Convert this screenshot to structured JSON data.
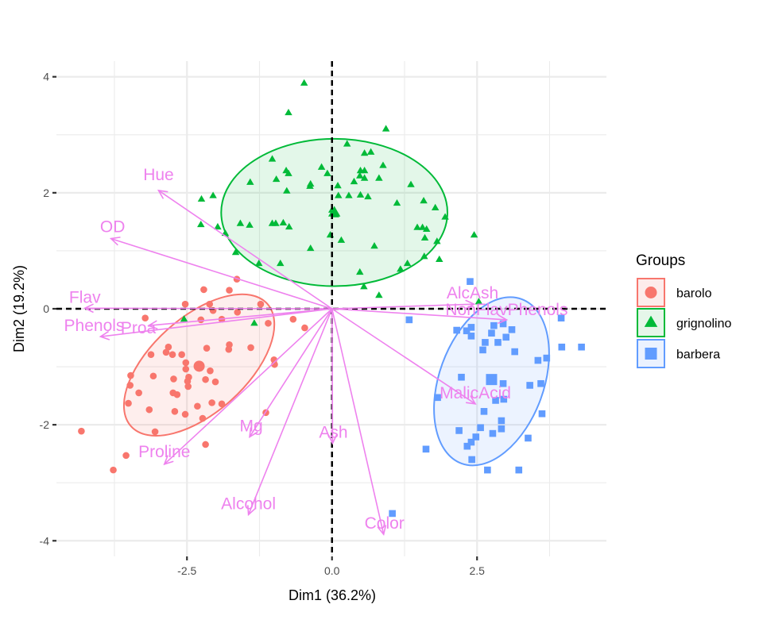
{
  "chart_data": {
    "type": "scatter",
    "subtype": "pca-biplot",
    "title": "",
    "xlabel": "Dim1 (36.2%)",
    "ylabel": "Dim2 (19.2%)",
    "xlim": [
      -4.75,
      4.73
    ],
    "ylim": [
      -4.27,
      4.27
    ],
    "x_ticks": [
      {
        "value": -2.5,
        "label": "-2.5"
      },
      {
        "value": 0,
        "label": "0.0"
      },
      {
        "value": 2.5,
        "label": "2.5"
      }
    ],
    "y_ticks": [
      {
        "value": -4,
        "label": "-4"
      },
      {
        "value": -2,
        "label": "-2"
      },
      {
        "value": 0,
        "label": "0"
      },
      {
        "value": 2,
        "label": "2"
      },
      {
        "value": 4,
        "label": "4"
      }
    ],
    "x_minor_grid": [
      -3.75,
      -1.25,
      1.25,
      3.75
    ],
    "y_minor_grid": [
      -3,
      -1,
      1,
      3
    ],
    "grid": true,
    "reference_lines": {
      "x": 0,
      "y": 0,
      "style": "dashed"
    },
    "legend": {
      "title": "Groups",
      "position": "right",
      "entries": [
        {
          "label": "barolo",
          "shape": "circle",
          "color": "#F8766D"
        },
        {
          "label": "grignolino",
          "shape": "triangle",
          "color": "#00BA38"
        },
        {
          "label": "barbera",
          "shape": "square",
          "color": "#619CFF"
        }
      ]
    },
    "series": [
      {
        "name": "barolo",
        "shape": "circle",
        "color": "#F8766D",
        "ellipse": {
          "cx": -2.29,
          "cy": -0.97,
          "rx": 1.58,
          "ry": 0.82,
          "angle": 42
        },
        "mean": [
          -2.29,
          -0.99
        ],
        "points": [
          [
            -1.64,
            0.51
          ],
          [
            -2.21,
            0.33
          ],
          [
            -1.77,
            0.32
          ],
          [
            -2.53,
            0.08
          ],
          [
            -2.11,
            0.08
          ],
          [
            -1.23,
            0.08
          ],
          [
            -1.63,
            -0.06
          ],
          [
            -3.22,
            -0.16
          ],
          [
            -2.26,
            -0.19
          ],
          [
            -1.9,
            -0.18
          ],
          [
            -1.1,
            -0.25
          ],
          [
            -0.67,
            -0.18
          ],
          [
            -0.47,
            -0.33
          ],
          [
            -2.82,
            -0.66
          ],
          [
            -2.86,
            -0.75
          ],
          [
            -2.75,
            -0.79
          ],
          [
            -2.59,
            -0.79
          ],
          [
            -3.12,
            -0.79
          ],
          [
            -2.16,
            -0.68
          ],
          [
            -1.77,
            -0.62
          ],
          [
            -1.78,
            -0.7
          ],
          [
            -1.4,
            -0.67
          ],
          [
            -2.52,
            -0.93
          ],
          [
            -2.52,
            -1.04
          ],
          [
            -2.1,
            -1.07
          ],
          [
            -1.0,
            -0.88
          ],
          [
            -0.99,
            -0.96
          ],
          [
            -3.47,
            -1.15
          ],
          [
            -3.08,
            -1.16
          ],
          [
            -2.73,
            -1.21
          ],
          [
            -2.47,
            -1.18
          ],
          [
            -2.18,
            -1.22
          ],
          [
            -2.01,
            -1.26
          ],
          [
            -2.49,
            -1.25
          ],
          [
            -2.48,
            -1.34
          ],
          [
            -3.48,
            -1.32
          ],
          [
            -3.33,
            -1.45
          ],
          [
            -2.74,
            -1.45
          ],
          [
            -2.67,
            -1.48
          ],
          [
            -3.51,
            -1.63
          ],
          [
            -2.32,
            -1.68
          ],
          [
            -2.07,
            -1.62
          ],
          [
            -1.9,
            -1.64
          ],
          [
            -3.15,
            -1.74
          ],
          [
            -2.71,
            -1.77
          ],
          [
            -2.53,
            -1.82
          ],
          [
            -2.23,
            -1.89
          ],
          [
            -1.14,
            -1.79
          ],
          [
            -3.05,
            -2.12
          ],
          [
            -4.32,
            -2.11
          ],
          [
            -2.18,
            -2.34
          ],
          [
            -3.55,
            -2.53
          ],
          [
            -3.77,
            -2.78
          ],
          [
            -2.05,
            -0.03
          ]
        ]
      },
      {
        "name": "grignolino",
        "shape": "triangle",
        "color": "#00BA38",
        "ellipse": {
          "cx": 0.04,
          "cy": 1.66,
          "rx": 1.95,
          "ry": 1.27,
          "angle": 0
        },
        "mean": [
          0.04,
          1.66
        ],
        "points": [
          [
            -0.48,
            3.89
          ],
          [
            -0.75,
            3.38
          ],
          [
            0.93,
            3.1
          ],
          [
            0.26,
            2.84
          ],
          [
            0.56,
            2.68
          ],
          [
            0.67,
            2.7
          ],
          [
            -1.03,
            2.58
          ],
          [
            -0.18,
            2.44
          ],
          [
            -0.79,
            2.38
          ],
          [
            -0.75,
            2.33
          ],
          [
            -0.08,
            2.33
          ],
          [
            0.88,
            2.47
          ],
          [
            0.49,
            2.38
          ],
          [
            0.56,
            2.38
          ],
          [
            0.48,
            2.29
          ],
          [
            0.56,
            2.25
          ],
          [
            0.81,
            2.25
          ],
          [
            0.38,
            2.19
          ],
          [
            -1.41,
            2.18
          ],
          [
            -0.96,
            2.23
          ],
          [
            -0.37,
            2.15
          ],
          [
            -0.38,
            2.11
          ],
          [
            0.1,
            2.12
          ],
          [
            1.36,
            2.14
          ],
          [
            -0.78,
            2.03
          ],
          [
            0.11,
            1.95
          ],
          [
            0.29,
            1.95
          ],
          [
            0.49,
            1.96
          ],
          [
            0.62,
            1.93
          ],
          [
            -2.25,
            1.89
          ],
          [
            -2.05,
            1.95
          ],
          [
            1.12,
            1.82
          ],
          [
            1.58,
            1.86
          ],
          [
            1.78,
            1.74
          ],
          [
            1.95,
            1.58
          ],
          [
            -2.26,
            1.45
          ],
          [
            -1.97,
            1.41
          ],
          [
            -1.58,
            1.47
          ],
          [
            -1.42,
            1.44
          ],
          [
            -1.03,
            1.47
          ],
          [
            -0.97,
            1.47
          ],
          [
            -0.84,
            1.48
          ],
          [
            -0.74,
            1.41
          ],
          [
            1.47,
            1.4
          ],
          [
            1.56,
            1.4
          ],
          [
            1.63,
            1.37
          ],
          [
            -1.84,
            1.3
          ],
          [
            -0.03,
            1.27
          ],
          [
            0.16,
            1.18
          ],
          [
            1.6,
            1.22
          ],
          [
            1.81,
            1.16
          ],
          [
            -0.37,
            1.04
          ],
          [
            0.73,
            1.08
          ],
          [
            -1.66,
            0.97
          ],
          [
            1.59,
            0.9
          ],
          [
            1.85,
            0.85
          ],
          [
            -1.26,
            0.78
          ],
          [
            -0.89,
            0.78
          ],
          [
            1.3,
            0.78
          ],
          [
            1.18,
            0.68
          ],
          [
            0.48,
            0.63
          ],
          [
            2.45,
            1.27
          ],
          [
            0.55,
            0.38
          ],
          [
            0.81,
            0.23
          ],
          [
            -1.34,
            -0.25
          ],
          [
            -2.55,
            -0.18
          ],
          [
            2.53,
            0.12
          ],
          [
            0.0,
            1.7
          ],
          [
            0.06,
            1.62
          ]
        ]
      },
      {
        "name": "barbera",
        "shape": "square",
        "color": "#619CFF",
        "ellipse": {
          "cx": 2.75,
          "cy": -1.25,
          "rx": 1.51,
          "ry": 0.9,
          "angle": 70
        },
        "mean": [
          2.75,
          -1.22
        ],
        "points": [
          [
            1.33,
            -0.19
          ],
          [
            3.95,
            -0.16
          ],
          [
            2.15,
            -0.37
          ],
          [
            2.32,
            -0.38
          ],
          [
            2.4,
            -0.32
          ],
          [
            2.4,
            -0.47
          ],
          [
            2.79,
            -0.29
          ],
          [
            2.95,
            -0.26
          ],
          [
            3.1,
            -0.36
          ],
          [
            2.75,
            -0.42
          ],
          [
            3.0,
            -0.49
          ],
          [
            2.86,
            -0.58
          ],
          [
            2.64,
            -0.58
          ],
          [
            2.6,
            -0.71
          ],
          [
            3.15,
            -0.74
          ],
          [
            3.96,
            -0.66
          ],
          [
            4.3,
            -0.66
          ],
          [
            3.55,
            -0.89
          ],
          [
            3.7,
            -0.85
          ],
          [
            2.23,
            -1.18
          ],
          [
            2.77,
            -1.22
          ],
          [
            2.95,
            -1.29
          ],
          [
            3.41,
            -1.32
          ],
          [
            3.6,
            -1.29
          ],
          [
            1.82,
            -1.53
          ],
          [
            2.82,
            -1.58
          ],
          [
            2.96,
            -1.56
          ],
          [
            2.62,
            -1.77
          ],
          [
            3.62,
            -1.81
          ],
          [
            2.92,
            -1.93
          ],
          [
            2.92,
            -2.07
          ],
          [
            2.56,
            -2.05
          ],
          [
            2.19,
            -2.1
          ],
          [
            2.77,
            -2.15
          ],
          [
            2.48,
            -2.21
          ],
          [
            2.4,
            -2.3
          ],
          [
            2.33,
            -2.37
          ],
          [
            3.38,
            -2.23
          ],
          [
            1.62,
            -2.42
          ],
          [
            2.41,
            -2.6
          ],
          [
            2.68,
            -2.78
          ],
          [
            3.22,
            -2.78
          ],
          [
            2.38,
            0.47
          ],
          [
            1.04,
            -3.53
          ]
        ]
      }
    ],
    "variables": {
      "color": "#EE82EE",
      "arrows": [
        {
          "name": "Hue",
          "x": -2.99,
          "y": 2.04
        },
        {
          "name": "OD",
          "x": -3.81,
          "y": 1.21
        },
        {
          "name": "Flav",
          "x": -4.26,
          "y": 0.01
        },
        {
          "name": "Proa",
          "x": -3.16,
          "y": -0.29
        },
        {
          "name": "Phenols",
          "x": -3.99,
          "y": -0.48
        },
        {
          "name": "Proline",
          "x": -2.89,
          "y": -2.68
        },
        {
          "name": "Mg",
          "x": -1.42,
          "y": -2.21
        },
        {
          "name": "Alcohol",
          "x": -1.44,
          "y": -3.55
        },
        {
          "name": "Ash",
          "x": 0.01,
          "y": -2.32
        },
        {
          "name": "Color",
          "x": 0.89,
          "y": -3.89
        },
        {
          "name": "AlcAsh",
          "x": 2.45,
          "y": 0.08
        },
        {
          "name": "NonFlavPhenols",
          "x": 3.01,
          "y": -0.19
        },
        {
          "name": "MalicAcid",
          "x": 2.47,
          "y": -1.64
        }
      ]
    }
  }
}
